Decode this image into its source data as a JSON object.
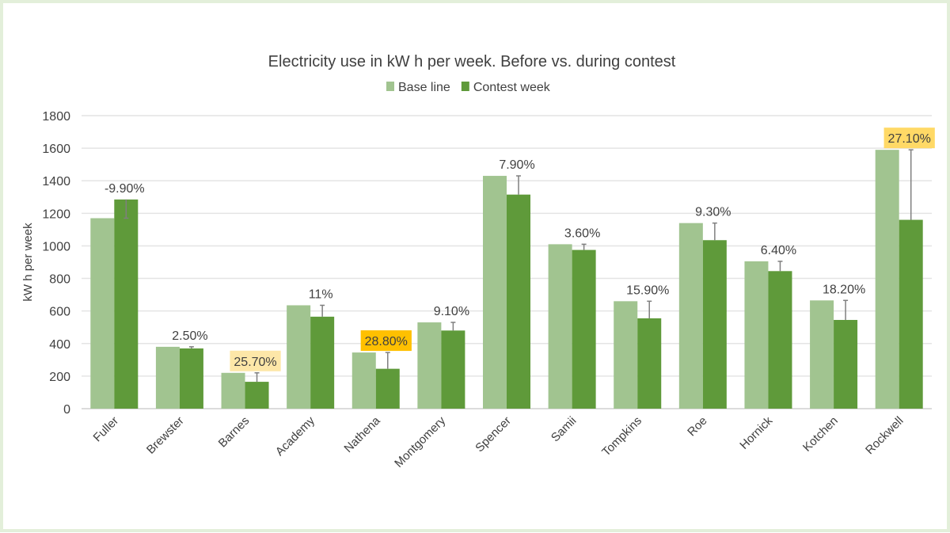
{
  "chart_data": {
    "type": "bar",
    "title": "Electricity use in kW h per week. Before vs. during contest",
    "xlabel": "",
    "ylabel": "kW h per week",
    "ylim": [
      0,
      1800
    ],
    "yticks": [
      0,
      200,
      400,
      600,
      800,
      1000,
      1200,
      1400,
      1600,
      1800
    ],
    "grid": true,
    "legend_position": "top",
    "categories": [
      "Fuller",
      "Brewster",
      "Barnes",
      "Academy",
      "Nathena",
      "Montgomery",
      "Spencer",
      "Samii",
      "Tompkins",
      "Roe",
      "Hornick",
      "Kotchen",
      "Rockwell"
    ],
    "series": [
      {
        "name": "Base line",
        "color": "#a1c490",
        "values": [
          1170,
          380,
          220,
          635,
          345,
          530,
          1430,
          1010,
          660,
          1140,
          905,
          665,
          1590
        ]
      },
      {
        "name": "Contest week",
        "color": "#5f9a3a",
        "values": [
          1285,
          370,
          165,
          565,
          245,
          480,
          1315,
          975,
          555,
          1035,
          845,
          545,
          1160
        ]
      }
    ],
    "error_bars": "Contest week bars carry an error bar that reaches the Base line value",
    "data_labels": [
      "-9.90%",
      "2.50%",
      "25.70%",
      "11%",
      "28.80%",
      "9.10%",
      "7.90%",
      "3.60%",
      "15.90%",
      "9.30%",
      "6.40%",
      "18.20%",
      "27.10%"
    ],
    "label_highlights": [
      "",
      "",
      "#fde7a8",
      "",
      "#ffc000",
      "",
      "",
      "",
      "",
      "",
      "",
      "",
      "#ffd966"
    ]
  }
}
